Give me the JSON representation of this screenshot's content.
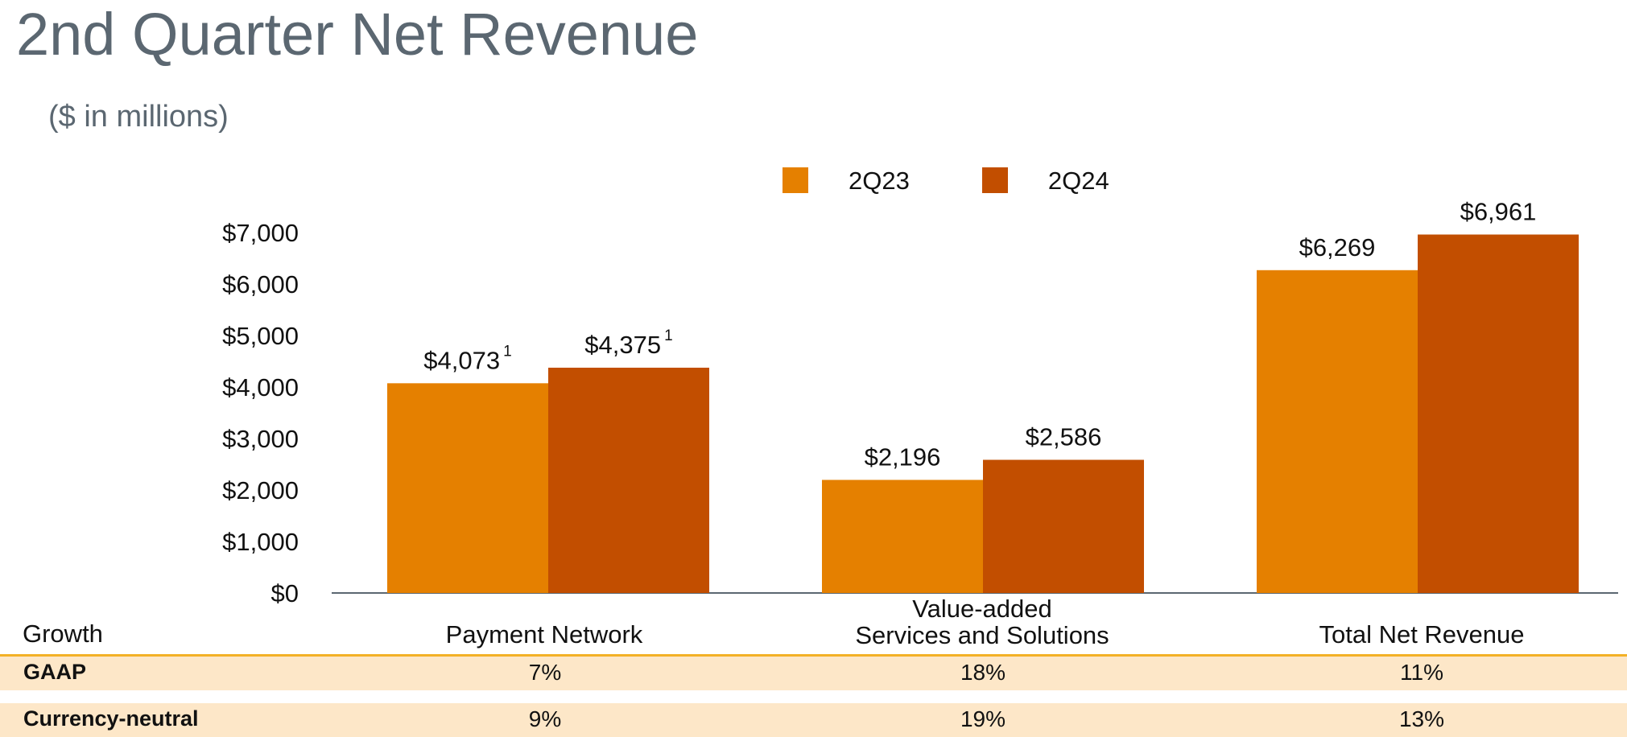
{
  "header": {
    "title": "2nd Quarter Net Revenue",
    "subtitle": "($ in millions)"
  },
  "legend": {
    "items": [
      {
        "label": "2Q23",
        "color": "#E58000"
      },
      {
        "label": "2Q24",
        "color": "#C24E00"
      }
    ]
  },
  "chart_data": {
    "type": "bar",
    "title": "2nd Quarter Net Revenue",
    "subtitle": "($ in millions)",
    "xlabel": "",
    "ylabel": "",
    "ylim": [
      0,
      7000
    ],
    "yticks": [
      0,
      1000,
      2000,
      3000,
      4000,
      5000,
      6000,
      7000
    ],
    "ytick_labels": [
      "$0",
      "$1,000",
      "$2,000",
      "$3,000",
      "$4,000",
      "$5,000",
      "$6,000",
      "$7,000"
    ],
    "categories": [
      [
        "Payment Network"
      ],
      [
        "Value-added",
        "Services and Solutions"
      ],
      [
        "Total Net Revenue"
      ]
    ],
    "series": [
      {
        "name": "2Q23",
        "color": "#E58000",
        "values": [
          4073,
          2196,
          6269
        ],
        "value_labels": [
          "$4,073",
          "$2,196",
          "$6,269"
        ],
        "footnotes": [
          "1",
          "",
          ""
        ]
      },
      {
        "name": "2Q24",
        "color": "#C24E00",
        "values": [
          4375,
          2586,
          6961
        ],
        "value_labels": [
          "$4,375",
          "$2,586",
          "$6,961"
        ],
        "footnotes": [
          "1",
          "",
          ""
        ]
      }
    ],
    "legend_position": "top-center",
    "grid": false
  },
  "growth_table": {
    "header": "Growth",
    "rows": [
      {
        "label": "GAAP",
        "values": [
          "7%",
          "18%",
          "11%"
        ]
      },
      {
        "label": "Currency-neutral",
        "values": [
          "9%",
          "19%",
          "13%"
        ]
      }
    ]
  },
  "colors": {
    "title": "#5b6771",
    "axis": "#5b6771",
    "growth_separator": "#f3b126",
    "growth_row_bg": "#fde7c8"
  }
}
